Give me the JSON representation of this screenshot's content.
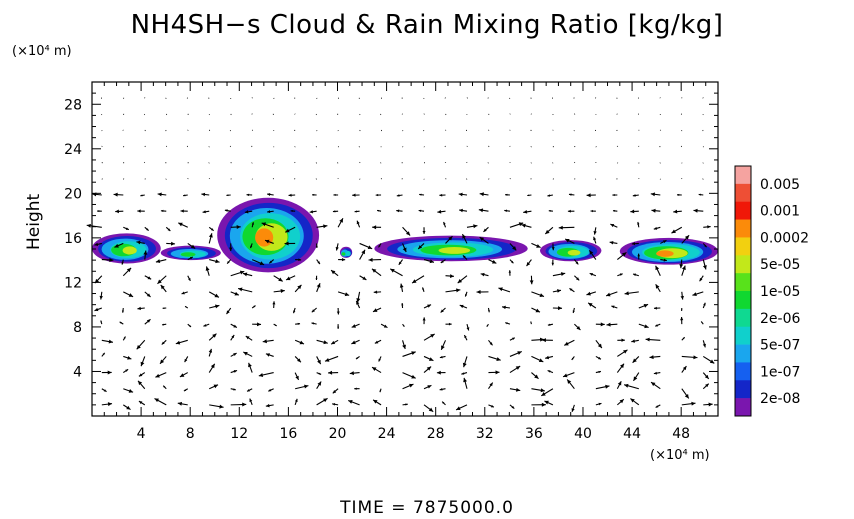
{
  "chart_data": {
    "type": "heatmap",
    "title": "NH4SH−s Cloud & Rain Mixing Ratio [kg/kg]",
    "ylabel": "Height",
    "x_unit": "(×10⁴ m)",
    "y_unit": "(×10⁴ m)",
    "xlim": [
      0,
      51
    ],
    "ylim": [
      0,
      30
    ],
    "x_ticks": [
      4,
      8,
      12,
      16,
      20,
      24,
      28,
      32,
      36,
      40,
      44,
      48
    ],
    "y_ticks": [
      4,
      8,
      12,
      16,
      20,
      24,
      28
    ],
    "colorbar": {
      "labels": [
        "0.005",
        "0.001",
        "0.0002",
        "5e-05",
        "1e-05",
        "2e-06",
        "5e-07",
        "1e-07",
        "2e-08"
      ],
      "colors": [
        "#f5a3a0",
        "#ee4f35",
        "#f01808",
        "#fb8b0a",
        "#f2d010",
        "#c2e81a",
        "#58e21b",
        "#10d830",
        "#0fd991",
        "#10d0cc",
        "#1aa6ee",
        "#1560f0",
        "#1426c8",
        "#7a16ae"
      ]
    },
    "cloud_regions": [
      {
        "x": [
          0,
          5.6
        ],
        "y": [
          13.7,
          16.4
        ],
        "peak": "5e-05"
      },
      {
        "x": [
          5.6,
          10.5
        ],
        "y": [
          14.0,
          15.3
        ],
        "peak": "1e-05"
      },
      {
        "x": [
          10.2,
          18.5
        ],
        "y": [
          12.9,
          19.6
        ],
        "peak": "0.0002"
      },
      {
        "x": [
          20.2,
          21.2
        ],
        "y": [
          14.2,
          15.2
        ],
        "peak": "1e-05"
      },
      {
        "x": [
          23.0,
          35.5
        ],
        "y": [
          13.9,
          16.2
        ],
        "peak": "5e-05"
      },
      {
        "x": [
          36.5,
          41.5
        ],
        "y": [
          13.9,
          15.8
        ],
        "peak": "5e-05"
      },
      {
        "x": [
          43.0,
          51.0
        ],
        "y": [
          13.6,
          16.0
        ],
        "peak": "0.0002"
      }
    ],
    "wind_vectors": "shown",
    "time": "TIME  =  7875000.0"
  }
}
